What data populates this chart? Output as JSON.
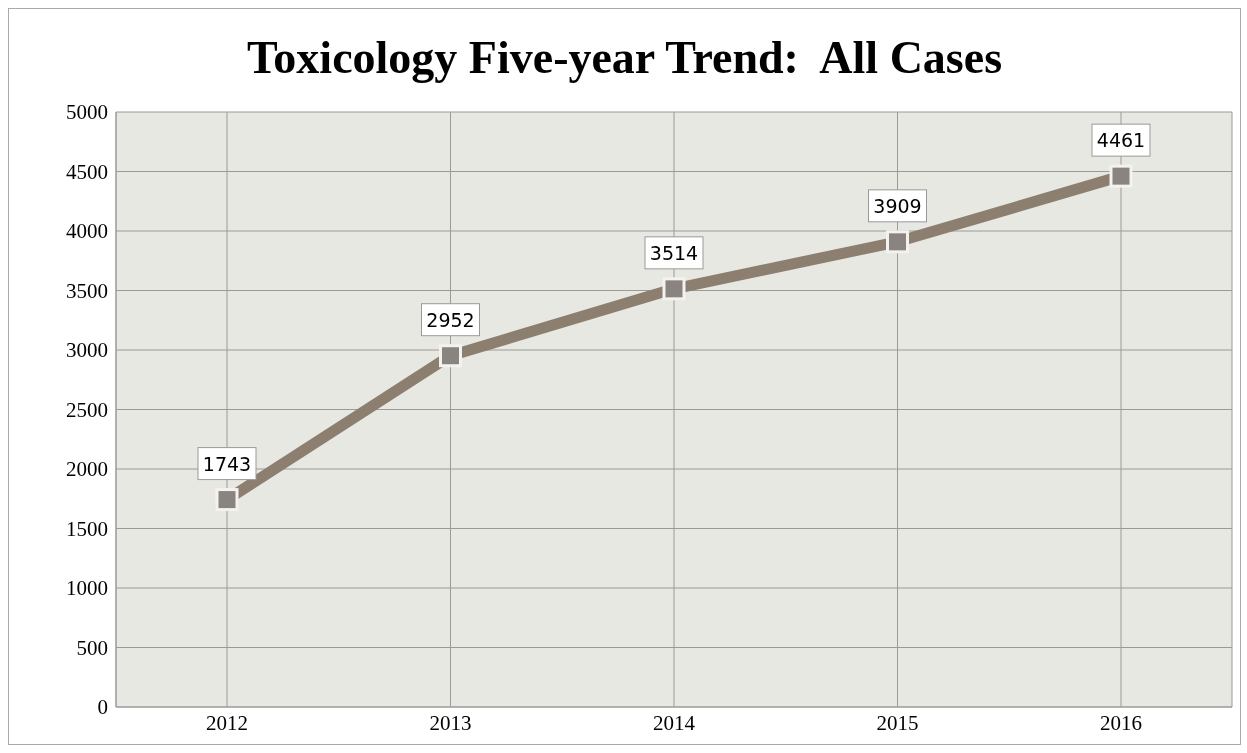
{
  "chart_data": {
    "type": "line",
    "title": "Toxicology Five-year Trend:  All Cases",
    "categories": [
      "2012",
      "2013",
      "2014",
      "2015",
      "2016"
    ],
    "series": [
      {
        "color": "#8c7f70",
        "values": [
          1743,
          2952,
          3514,
          3909,
          4461
        ]
      }
    ],
    "ylim": [
      0,
      5000
    ],
    "yticks": [
      0,
      500,
      1000,
      1500,
      2000,
      2500,
      3000,
      3500,
      4000,
      4500,
      5000
    ],
    "grid": true,
    "marker": "square",
    "line_style": "solid",
    "data_labels": true
  }
}
